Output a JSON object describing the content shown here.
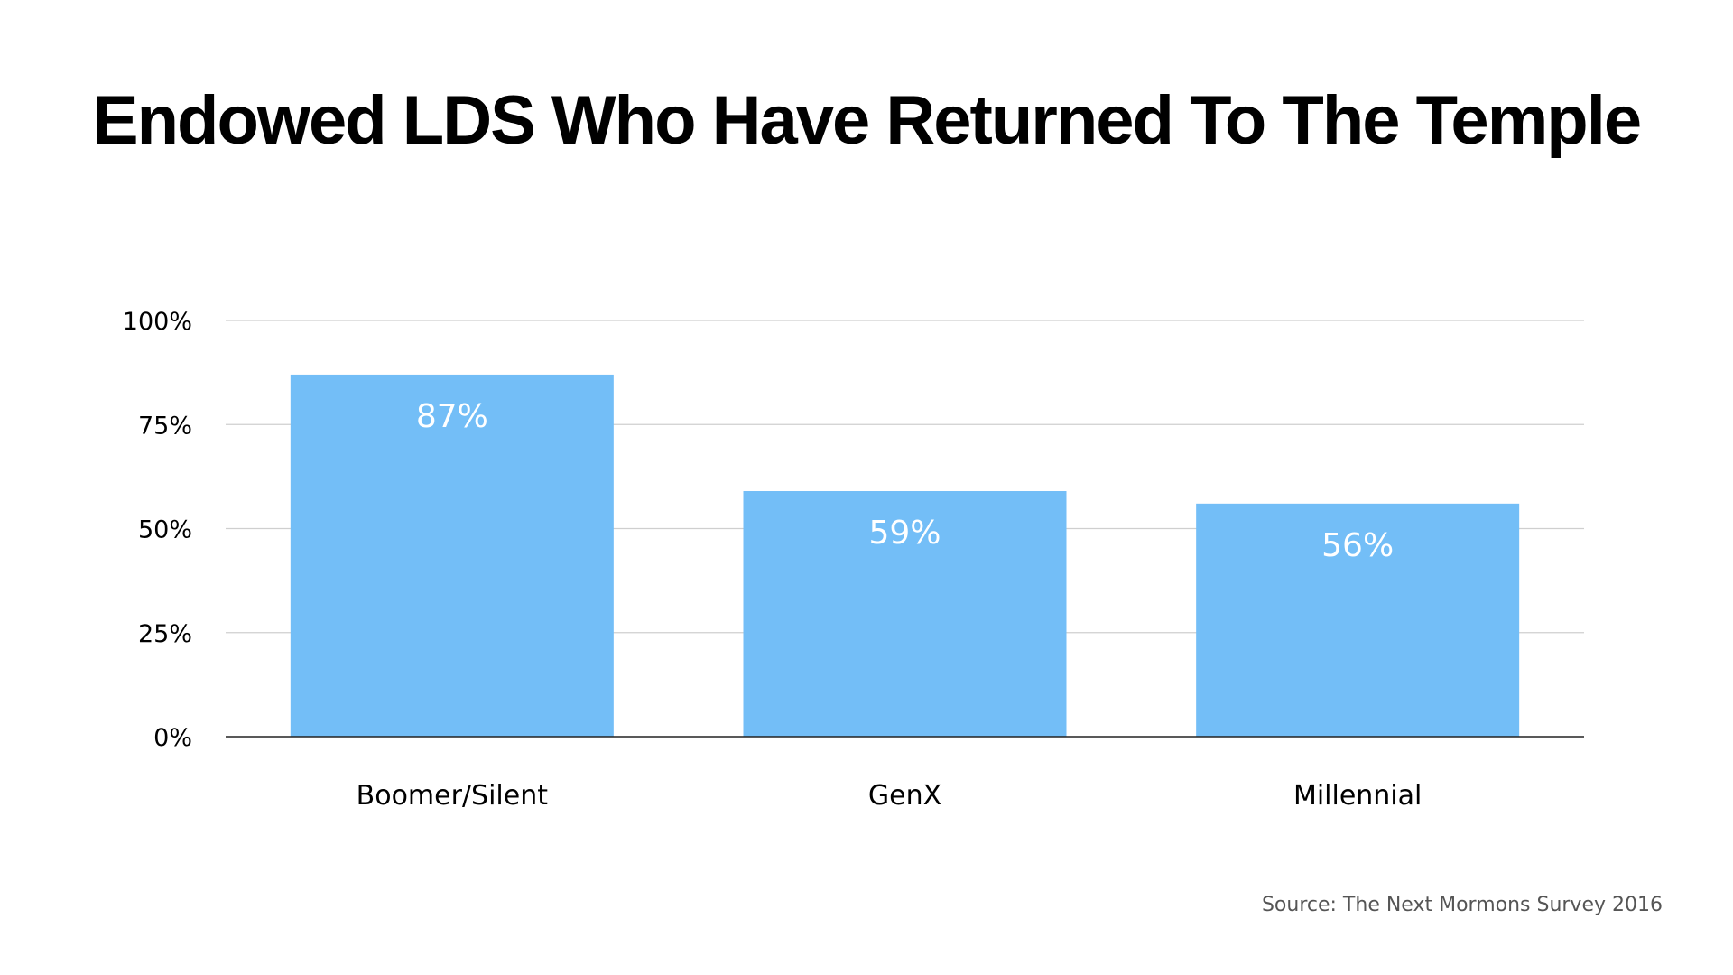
{
  "chart_data": {
    "type": "bar",
    "title": "Endowed LDS Who Have Returned To The Temple",
    "categories": [
      "Boomer/Silent",
      "GenX",
      "Millennial"
    ],
    "values": [
      87,
      59,
      56
    ],
    "data_labels": [
      "87%",
      "59%",
      "56%"
    ],
    "ylim": [
      0,
      100
    ],
    "yticks": [
      0,
      25,
      50,
      75,
      100
    ],
    "ytick_labels": [
      "0%",
      "25%",
      "50%",
      "75%",
      "100%"
    ],
    "grid": true,
    "bar_color": "#73bef7",
    "xlabel": "",
    "ylabel": ""
  },
  "source": "Source: The Next Mormons Survey 2016"
}
